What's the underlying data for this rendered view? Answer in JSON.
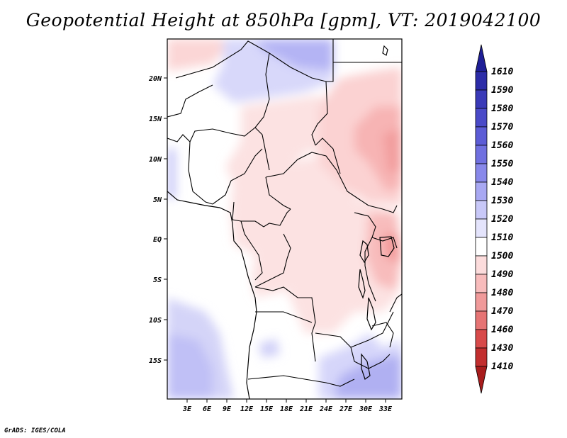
{
  "title": "Geopotential Height at 850hPa [gpm], VT: 2019042100",
  "credit": "GrADS: IGES/COLA",
  "lat_ticks": [
    "20N",
    "15N",
    "10N",
    "5N",
    "EQ",
    "5S",
    "10S",
    "15S"
  ],
  "lon_ticks": [
    "3E",
    "6E",
    "9E",
    "12E",
    "15E",
    "18E",
    "21E",
    "24E",
    "27E",
    "30E",
    "33E"
  ],
  "legend": {
    "levels": [
      "1610",
      "1590",
      "1580",
      "1570",
      "1560",
      "1550",
      "1540",
      "1530",
      "1520",
      "1510",
      "1500",
      "1490",
      "1480",
      "1470",
      "1460",
      "1430",
      "1410"
    ],
    "colors": [
      "#1e1e96",
      "#2c2ca8",
      "#3a3ab8",
      "#4a4ac8",
      "#5c5cd6",
      "#7070e0",
      "#8888ea",
      "#a8a8f2",
      "#c8c8f8",
      "#e4e4fc",
      "#ffffff",
      "#fcdcdc",
      "#f8bcbc",
      "#f09a9a",
      "#e67474",
      "#d84a4a",
      "#c22e2e",
      "#a81c1c"
    ]
  }
}
